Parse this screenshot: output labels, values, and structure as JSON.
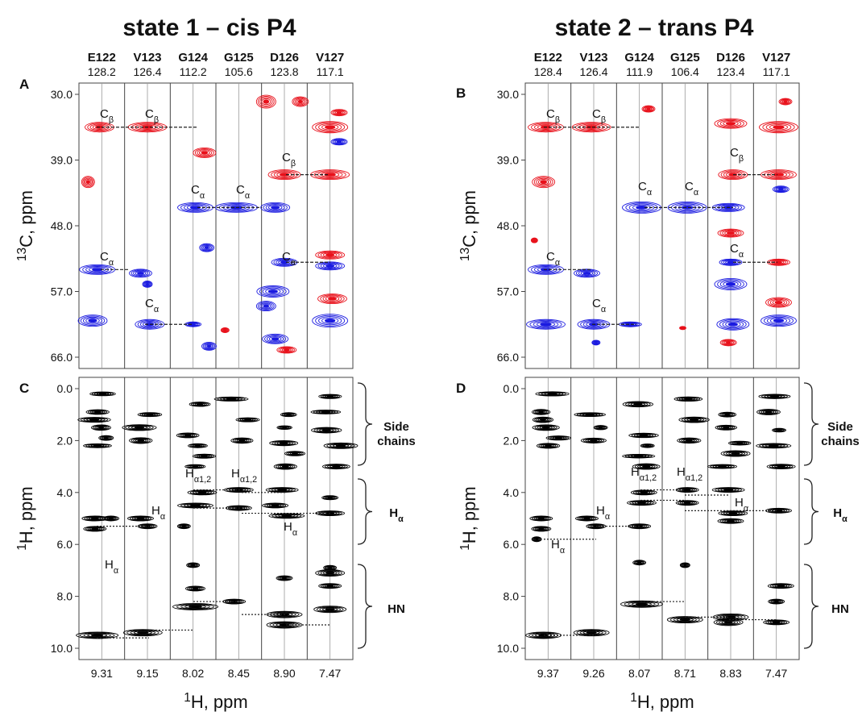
{
  "titles": {
    "left": "state 1 – cis P4",
    "right": "state 2 – trans P4"
  },
  "panels": {
    "A": "A",
    "B": "B",
    "C": "C",
    "D": "D"
  },
  "state1": {
    "residues": [
      "E122",
      "V123",
      "G124",
      "G125",
      "D126",
      "V127"
    ],
    "n15_shifts": [
      "128.2",
      "126.4",
      "112.2",
      "105.6",
      "123.8",
      "117.1"
    ],
    "h_shifts": [
      "9.31",
      "9.15",
      "8.02",
      "8.45",
      "8.90",
      "7.47"
    ]
  },
  "state2": {
    "residues": [
      "E122",
      "V123",
      "G124",
      "G125",
      "D126",
      "V127"
    ],
    "n15_shifts": [
      "128.4",
      "126.4",
      "111.9",
      "106.4",
      "123.4",
      "117.1"
    ],
    "h_shifts": [
      "9.37",
      "9.26",
      "8.07",
      "8.71",
      "8.83",
      "7.47"
    ]
  },
  "axes": {
    "c13_ticks": [
      "30.0",
      "39.0",
      "48.0",
      "57.0",
      "66.0"
    ],
    "h1_ticks": [
      "0.0",
      "2.0",
      "4.0",
      "6.0",
      "8.0",
      "10.0"
    ],
    "c13_label": "13C, ppm",
    "h1_label": "1H, ppm",
    "x_label": "1H, ppm"
  },
  "annotations": {
    "cb": "Cβ",
    "ca": "Cα",
    "ha12": "Hα1,2",
    "ha": "Hα"
  },
  "regions": {
    "side1": "Side",
    "side2": "chains",
    "ha": "Hα",
    "hn": "HN"
  },
  "colors": {
    "positive": "#e8101a",
    "negative": "#1a1ae0",
    "strip_line": "#999999",
    "peak": "#000000"
  }
}
